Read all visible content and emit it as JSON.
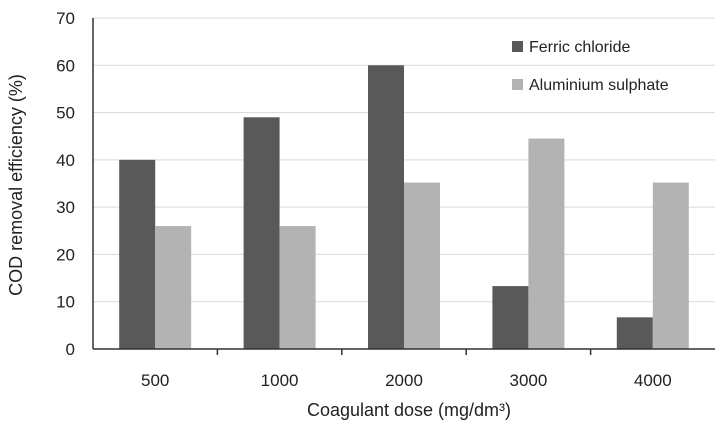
{
  "chart_data": {
    "type": "bar",
    "categories": [
      "500",
      "1000",
      "2000",
      "3000",
      "4000"
    ],
    "series": [
      {
        "name": "Ferric chloride",
        "values": [
          40,
          49,
          60,
          13.3,
          6.7
        ],
        "color": "#595959"
      },
      {
        "name": "Aluminium sulphate",
        "values": [
          26,
          26,
          35.2,
          44.5,
          35.2
        ],
        "color": "#b3b3b3"
      }
    ],
    "title": "",
    "xlabel": "Coagulant dose (mg/dm³)",
    "ylabel": "COD removal efficiency (%)",
    "ylim": [
      0,
      70
    ],
    "yticks": [
      "0",
      "10",
      "20",
      "30",
      "40",
      "50",
      "60",
      "70"
    ],
    "grid": true,
    "legend_position": "top-right"
  }
}
